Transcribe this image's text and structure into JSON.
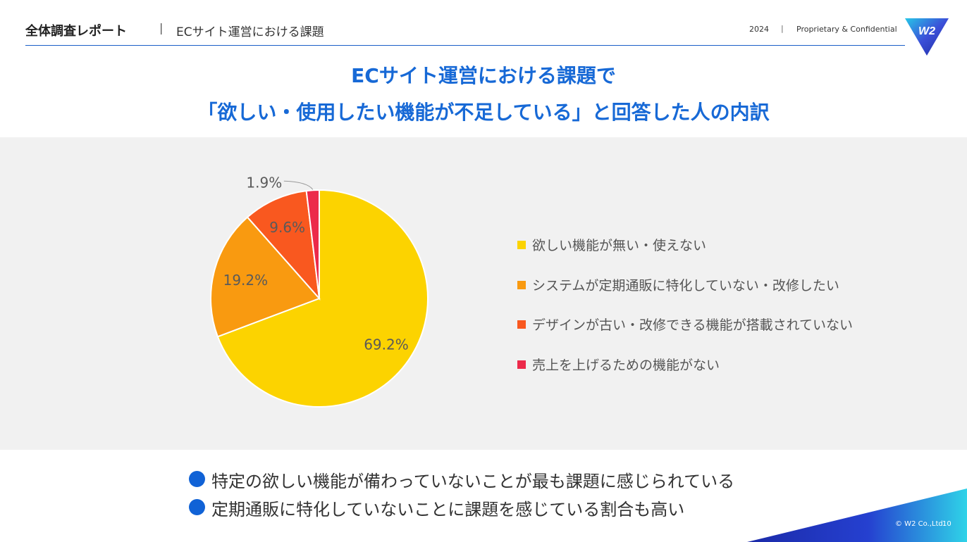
{
  "header": {
    "report_title": "全体調査レポート",
    "separator": "|",
    "subtitle": "ECサイト運営における課題",
    "year": "2024",
    "confidential": "Proprietary & Confidential",
    "logo_text": "W2"
  },
  "title": {
    "line1": "ECサイト運営における課題で",
    "line2": "「欲しい・使用したい機能が不足している」と回答した人の内訳"
  },
  "chart_data": {
    "type": "pie",
    "title": "",
    "slices": [
      {
        "label": "欲しい機能が無い・使えない",
        "value": 69.2,
        "value_label": "69.2%",
        "color": "#FCD300"
      },
      {
        "label": "システムが定期通販に特化していない・改修したい",
        "value": 19.2,
        "value_label": "19.2%",
        "color": "#F99A10"
      },
      {
        "label": "デザインが古い・改修できる機能が搭載されていない",
        "value": 9.6,
        "value_label": "9.6%",
        "color": "#F9581F"
      },
      {
        "label": "売上を上げるための機能がない",
        "value": 1.9,
        "value_label": "1.9%",
        "color": "#EC2A4A"
      }
    ],
    "legend_position": "right"
  },
  "findings": [
    "特定の欲しい機能が備わっていないことが最も課題に感じられている",
    "定期通販に特化していないことに課題を感じている割合も高い"
  ],
  "footer": {
    "copyright": "© W2 Co.,Ltd.",
    "page_number": "10"
  }
}
